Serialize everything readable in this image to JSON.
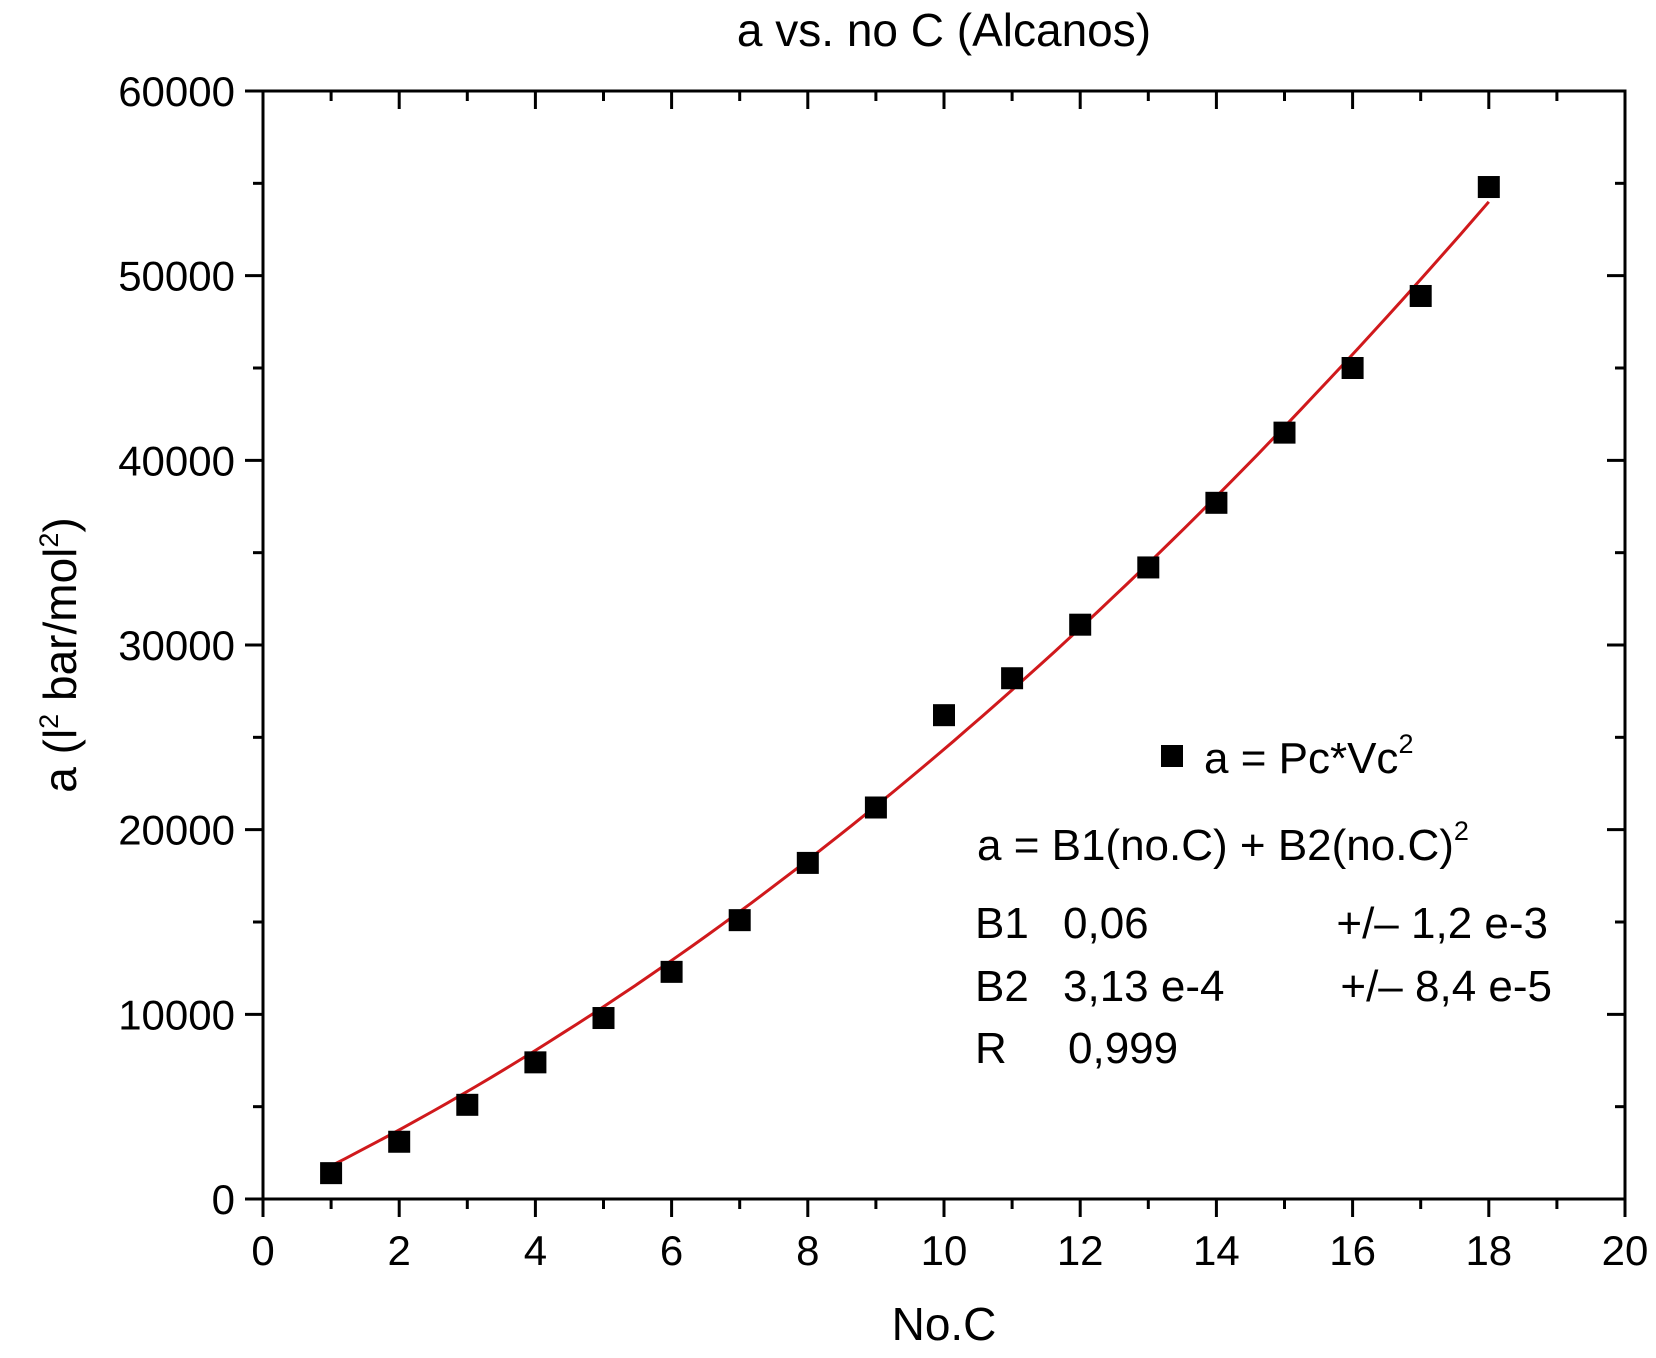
{
  "chart_data": {
    "type": "scatter",
    "title": "a vs. no C (Alcanos)",
    "xlabel": "No.C",
    "ylabel": {
      "base": "a (l",
      "sup1": "2",
      "mid": " bar/mol",
      "sup2": "2",
      "end": ")"
    },
    "xlim": [
      0,
      20
    ],
    "ylim": [
      0,
      60000
    ],
    "x_ticks": [
      "0",
      "2",
      "4",
      "6",
      "8",
      "10",
      "12",
      "14",
      "16",
      "18",
      "20"
    ],
    "y_ticks": [
      "0",
      "10000",
      "20000",
      "30000",
      "40000",
      "50000",
      "60000"
    ],
    "grid": false,
    "series": [
      {
        "name": "a = Pc*Vc2",
        "marker": "square",
        "color": "#000000",
        "x": [
          1,
          2,
          3,
          4,
          5,
          6,
          7,
          8,
          9,
          10,
          11,
          12,
          13,
          14,
          15,
          16,
          17,
          18
        ],
        "y": [
          1400,
          3100,
          5100,
          7400,
          9800,
          12300,
          15100,
          18200,
          21200,
          26200,
          28200,
          31100,
          34200,
          37700,
          41500,
          45000,
          48900,
          54800
        ]
      },
      {
        "name": "fit",
        "type": "line",
        "color": "#d0191c",
        "x": [
          1,
          18
        ],
        "y": [
          1800,
          54000
        ]
      }
    ],
    "legend": {
      "placement": "center-right",
      "marker_label": {
        "base": "a = Pc*Vc",
        "sup": "2"
      },
      "equation": {
        "base": "a = B1(no.C) + B2(no.C)",
        "sup": "2"
      },
      "params": [
        {
          "name": "B1",
          "value": "0,06",
          "error": "+/– 1,2 e-3"
        },
        {
          "name": "B2",
          "value": "3,13 e-4",
          "error": "+/– 8,4 e-5"
        },
        {
          "name": "R",
          "value": "0,999",
          "error": ""
        }
      ]
    }
  }
}
